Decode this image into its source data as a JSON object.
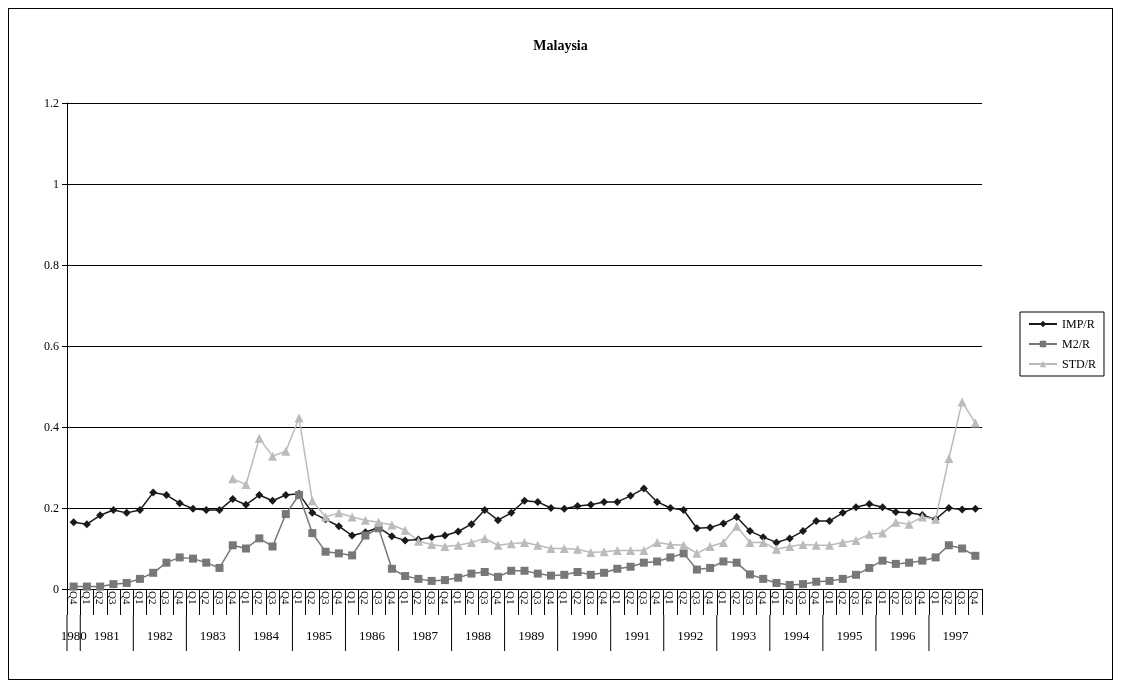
{
  "chart_data": {
    "type": "line",
    "title": "Malaysia",
    "categories": [
      "Q4",
      "Q1",
      "Q2",
      "Q3",
      "Q4",
      "Q1",
      "Q2",
      "Q3",
      "Q4",
      "Q1",
      "Q2",
      "Q3",
      "Q4",
      "Q1",
      "Q2",
      "Q3",
      "Q4",
      "Q1",
      "Q2",
      "Q3",
      "Q4",
      "Q1",
      "Q2",
      "Q3",
      "Q4",
      "Q1",
      "Q2",
      "Q3",
      "Q4",
      "Q1",
      "Q2",
      "Q3",
      "Q4",
      "Q1",
      "Q2",
      "Q3",
      "Q4",
      "Q1",
      "Q2",
      "Q3",
      "Q4",
      "Q1",
      "Q2",
      "Q3",
      "Q4",
      "Q1",
      "Q2",
      "Q3",
      "Q4",
      "Q1",
      "Q2",
      "Q3",
      "Q4",
      "Q1",
      "Q2",
      "Q3",
      "Q4",
      "Q1",
      "Q2",
      "Q3",
      "Q4",
      "Q1",
      "Q2",
      "Q3",
      "Q4",
      "Q1",
      "Q2",
      "Q3",
      "Q4"
    ],
    "annotations": [
      "1980",
      "1981",
      "1982",
      "1983",
      "1984",
      "1985",
      "1986",
      "1987",
      "1988",
      "1989",
      "1990",
      "1991",
      "1992",
      "1993",
      "1994",
      "1995",
      "1996",
      "1997"
    ],
    "series": [
      {
        "name": "IMP/R",
        "color": "#1a1a1a",
        "marker": "diamond",
        "values": [
          0.165,
          0.16,
          0.182,
          0.195,
          0.188,
          0.195,
          0.238,
          0.232,
          0.212,
          0.198,
          0.195,
          0.195,
          0.222,
          0.208,
          0.232,
          0.218,
          0.232,
          0.235,
          0.188,
          0.172,
          0.155,
          0.132,
          0.14,
          0.152,
          0.13,
          0.12,
          0.122,
          0.128,
          0.132,
          0.142,
          0.16,
          0.195,
          0.17,
          0.188,
          0.218,
          0.215,
          0.2,
          0.198,
          0.205,
          0.208,
          0.215,
          0.215,
          0.23,
          0.248,
          0.215,
          0.2,
          0.195,
          0.15,
          0.152,
          0.162,
          0.178,
          0.143,
          0.128,
          0.115,
          0.125,
          0.143,
          0.168,
          0.168,
          0.188,
          0.202,
          0.21,
          0.202,
          0.19,
          0.188,
          0.183,
          0.172,
          0.2,
          0.196,
          0.198
        ]
      },
      {
        "name": "M2/R",
        "color": "#777777",
        "marker": "square",
        "values": [
          0.006,
          0.006,
          0.006,
          0.012,
          0.015,
          0.025,
          0.04,
          0.065,
          0.078,
          0.075,
          0.065,
          0.052,
          0.108,
          0.1,
          0.125,
          0.105,
          0.185,
          0.232,
          0.138,
          0.092,
          0.088,
          0.083,
          0.132,
          0.15,
          0.05,
          0.032,
          0.025,
          0.02,
          0.022,
          0.028,
          0.038,
          0.042,
          0.03,
          0.045,
          0.045,
          0.038,
          0.033,
          0.035,
          0.042,
          0.035,
          0.04,
          0.05,
          0.055,
          0.065,
          0.068,
          0.078,
          0.088,
          0.048,
          0.052,
          0.068,
          0.065,
          0.036,
          0.025,
          0.015,
          0.01,
          0.012,
          0.018,
          0.02,
          0.025,
          0.035,
          0.052,
          0.07,
          0.062,
          0.065,
          0.07,
          0.078,
          0.108,
          0.1,
          0.082
        ]
      },
      {
        "name": "STD/R",
        "color": "#bbbbbb",
        "marker": "triangle",
        "values": [
          null,
          null,
          null,
          null,
          null,
          null,
          null,
          null,
          null,
          null,
          null,
          null,
          0.272,
          0.258,
          0.372,
          0.328,
          0.34,
          0.422,
          0.218,
          0.178,
          0.188,
          0.178,
          0.17,
          0.165,
          0.158,
          0.145,
          0.118,
          0.11,
          0.105,
          0.108,
          0.115,
          0.125,
          0.108,
          0.112,
          0.115,
          0.108,
          0.1,
          0.1,
          0.098,
          0.09,
          0.092,
          0.095,
          0.095,
          0.095,
          0.115,
          0.11,
          0.108,
          0.088,
          0.105,
          0.115,
          0.155,
          0.115,
          0.115,
          0.098,
          0.105,
          0.11,
          0.108,
          0.108,
          0.115,
          0.12,
          0.135,
          0.138,
          0.165,
          0.16,
          0.178,
          0.172,
          0.322,
          0.462,
          0.41
        ]
      }
    ],
    "ylim": [
      0,
      1.2
    ],
    "yticks": [
      0,
      0.2,
      0.4,
      0.6,
      0.8,
      1,
      1.2
    ],
    "grid": "y",
    "legend": "right"
  }
}
